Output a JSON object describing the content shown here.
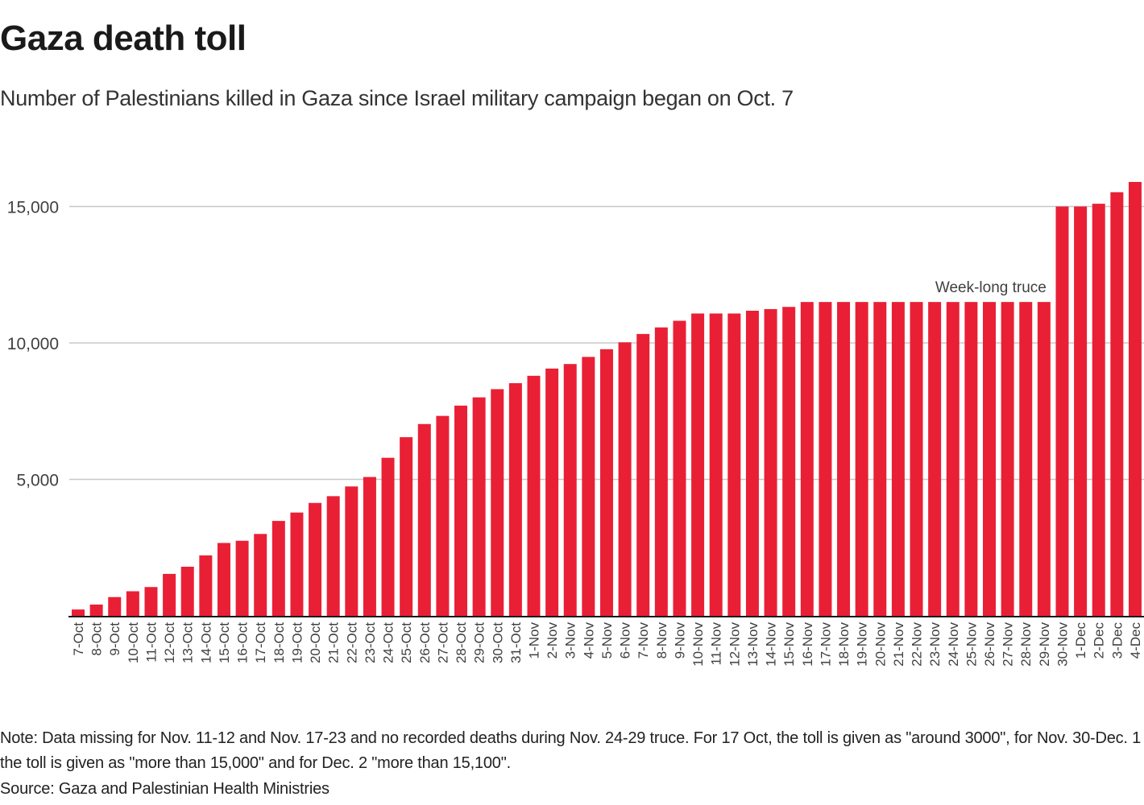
{
  "header": {
    "title": "Gaza death toll",
    "subtitle": "Number of Palestinians killed in Gaza since Israel military campaign began on Oct. 7"
  },
  "footer": {
    "note": "Note: Data missing for Nov. 11-12 and Nov. 17-23 and no recorded deaths during Nov. 24-29 truce. For 17 Oct, the toll is given as \"around 3000\", for Nov. 30-Dec. 1 the toll is given as \"more than 15,000\" and for Dec. 2 \"more than 15,100\".",
    "source": "Source: Gaza and Palestinian Health Ministries"
  },
  "colors": {
    "bar": "#e92035",
    "grid": "#c8c8c8",
    "axis": "#1a1a1a"
  },
  "chart_data": {
    "type": "bar",
    "title": "Gaza death toll",
    "subtitle": "Number of Palestinians killed in Gaza since Israel military campaign began on Oct. 7",
    "xlabel": "",
    "ylabel": "",
    "ylim": [
      0,
      16000
    ],
    "yticks": [
      5000,
      10000,
      15000
    ],
    "ytick_labels": [
      "5,000",
      "10,000",
      "15,000"
    ],
    "grid": true,
    "legend": "none",
    "categories": [
      "7-Oct",
      "8-Oct",
      "9-Oct",
      "10-Oct",
      "11-Oct",
      "12-Oct",
      "13-Oct",
      "14-Oct",
      "15-Oct",
      "16-Oct",
      "17-Oct",
      "18-Oct",
      "19-Oct",
      "20-Oct",
      "21-Oct",
      "22-Oct",
      "23-Oct",
      "24-Oct",
      "25-Oct",
      "26-Oct",
      "27-Oct",
      "28-Oct",
      "29-Oct",
      "30-Oct",
      "31-Oct",
      "1-Nov",
      "2-Nov",
      "3-Nov",
      "4-Nov",
      "5-Nov",
      "6-Nov",
      "7-Nov",
      "8-Nov",
      "9-Nov",
      "10-Nov",
      "11-Nov",
      "12-Nov",
      "13-Nov",
      "14-Nov",
      "15-Nov",
      "16-Nov",
      "17-Nov",
      "18-Nov",
      "19-Nov",
      "20-Nov",
      "21-Nov",
      "22-Nov",
      "23-Nov",
      "24-Nov",
      "25-Nov",
      "26-Nov",
      "27-Nov",
      "28-Nov",
      "29-Nov",
      "30-Nov",
      "1-Dec",
      "2-Dec",
      "3-Dec",
      "4-Dec"
    ],
    "values": [
      232,
      413,
      687,
      900,
      1055,
      1537,
      1799,
      2215,
      2670,
      2750,
      3000,
      3478,
      3785,
      4137,
      4385,
      4741,
      5087,
      5791,
      6546,
      7028,
      7326,
      7703,
      8005,
      8306,
      8525,
      8796,
      9061,
      9227,
      9488,
      9770,
      10022,
      10328,
      10569,
      10812,
      11078,
      11078,
      11078,
      11180,
      11240,
      11320,
      11500,
      11500,
      11500,
      11500,
      11500,
      11500,
      11500,
      11500,
      11500,
      11500,
      11500,
      11500,
      11500,
      11500,
      15000,
      15000,
      15100,
      15523,
      15899
    ],
    "annotations": [
      {
        "text": "Week-long truce",
        "anchor_category": "29-Nov",
        "align": "right",
        "position": "above-bars"
      }
    ]
  }
}
